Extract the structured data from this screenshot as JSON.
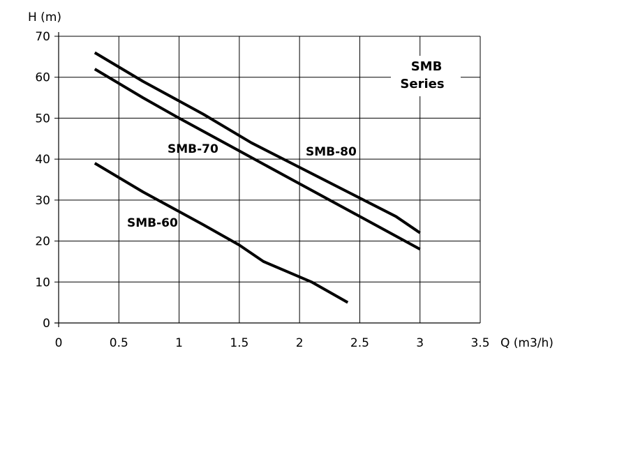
{
  "chart_data": {
    "type": "line",
    "xlabel": "Q (m3/h)",
    "ylabel": "H (m)",
    "annotation": [
      "SMB",
      "Series"
    ],
    "xlim": [
      0,
      3.5
    ],
    "ylim": [
      0,
      70
    ],
    "xticks": [
      "0",
      "0.5",
      "1",
      "1.5",
      "2",
      "2.5",
      "3",
      "3.5"
    ],
    "yticks": [
      "0",
      "10",
      "20",
      "30",
      "40",
      "50",
      "60",
      "70"
    ],
    "grid": true,
    "series": [
      {
        "name": "SMB-80",
        "x": [
          0.3,
          0.7,
          1.2,
          1.6,
          2.0,
          2.4,
          2.8,
          3.0
        ],
        "y": [
          66,
          59,
          51,
          44,
          38,
          32,
          26,
          22
        ]
      },
      {
        "name": "SMB-70",
        "x": [
          0.3,
          0.7,
          1.0,
          1.5,
          2.0,
          2.5,
          3.0
        ],
        "y": [
          62,
          55,
          50,
          42,
          34,
          26,
          18
        ]
      },
      {
        "name": "SMB-60",
        "x": [
          0.3,
          0.7,
          1.2,
          1.5,
          1.7,
          2.1,
          2.4
        ],
        "y": [
          39,
          32,
          24,
          19,
          15,
          10,
          5
        ]
      }
    ]
  }
}
